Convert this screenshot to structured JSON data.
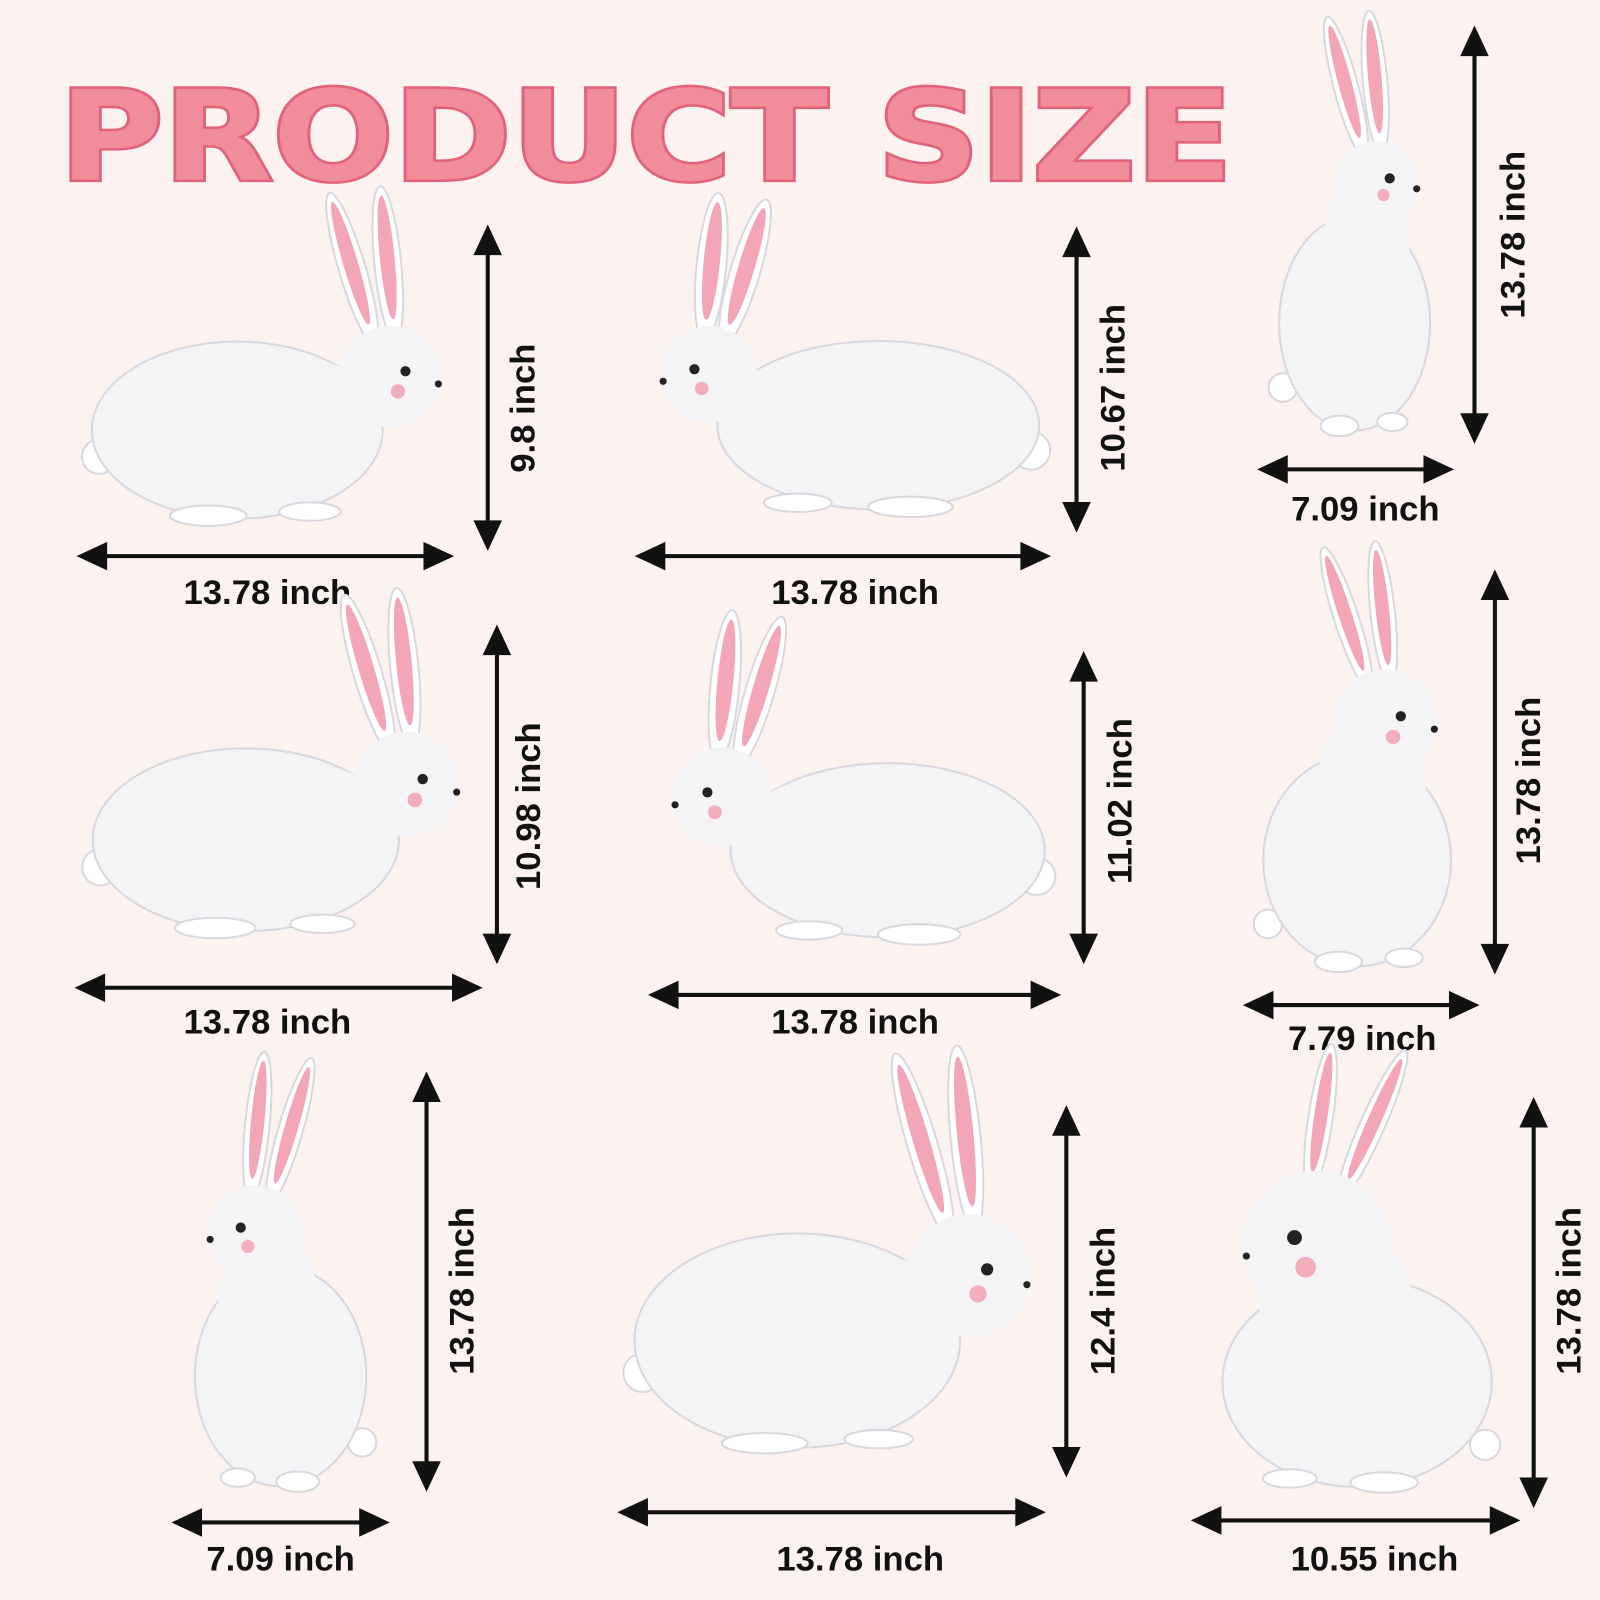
{
  "title": "PRODUCT SIZE",
  "colors": {
    "background": "#fcf3f1",
    "title_fill": "#f18c9b",
    "title_stroke": "#e2627a",
    "bunny_body": "#f4f3f6",
    "bunny_shade": "#d9d8de",
    "ear_inner": "#f3a6b8",
    "arrow": "#111111"
  },
  "items": [
    {
      "width_label": "13.78 inch",
      "height_label": "9.8 inch",
      "pose": "leaping-right"
    },
    {
      "width_label": "13.78 inch",
      "height_label": "10.67 inch",
      "pose": "leaping-left"
    },
    {
      "width_label": "7.09 inch",
      "height_label": "13.78 inch",
      "pose": "sitting-upright-right"
    },
    {
      "width_label": "13.78 inch",
      "height_label": "10.98 inch",
      "pose": "crouching-right"
    },
    {
      "width_label": "13.78 inch",
      "height_label": "11.02 inch",
      "pose": "lying-left"
    },
    {
      "width_label": "7.79 inch",
      "height_label": "13.78 inch",
      "pose": "standing-looking-up"
    },
    {
      "width_label": "7.09 inch",
      "height_label": "13.78 inch",
      "pose": "sitting-upright-left"
    },
    {
      "width_label": "13.78 inch",
      "height_label": "12.4 inch",
      "pose": "crouching-right"
    },
    {
      "width_label": "10.55 inch",
      "height_label": "13.78 inch",
      "pose": "sitting-looking-up-left"
    }
  ]
}
